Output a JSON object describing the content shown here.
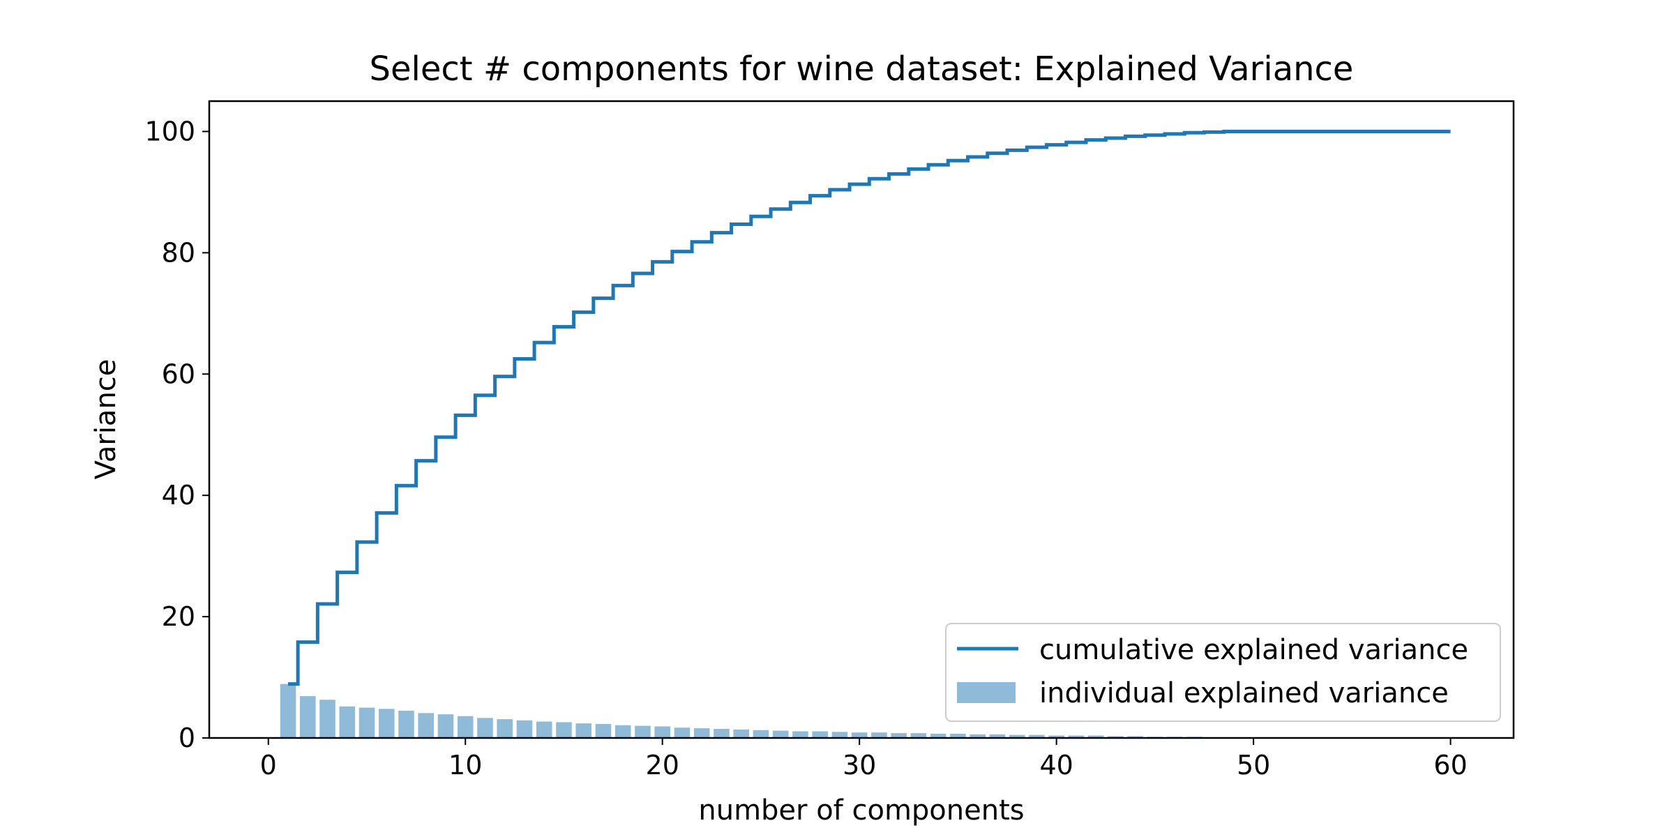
{
  "chart_data": {
    "type": "bar",
    "title": "Select # components for wine dataset: Explained Variance",
    "xlabel": "number of components",
    "ylabel": "Variance",
    "xlim": [
      -3,
      63.2
    ],
    "ylim": [
      0,
      105
    ],
    "xticks": [
      0,
      10,
      20,
      30,
      40,
      50,
      60
    ],
    "yticks": [
      0,
      20,
      40,
      60,
      80,
      100
    ],
    "grid": false,
    "legend_position": "lower right",
    "series": [
      {
        "name": "cumulative explained variance",
        "type": "step",
        "color": "#1f77b4",
        "x": [
          1,
          2,
          3,
          4,
          5,
          6,
          7,
          8,
          9,
          10,
          11,
          12,
          13,
          14,
          15,
          16,
          17,
          18,
          19,
          20,
          21,
          22,
          23,
          24,
          25,
          26,
          27,
          28,
          29,
          30,
          31,
          32,
          33,
          34,
          35,
          36,
          37,
          38,
          39,
          40,
          41,
          42,
          43,
          44,
          45,
          46,
          47,
          48,
          49,
          50,
          51,
          52,
          53,
          54,
          55,
          56,
          57,
          58,
          59,
          60
        ],
        "values": [
          8.9,
          15.8,
          22.1,
          27.3,
          32.3,
          37.1,
          41.6,
          45.7,
          49.6,
          53.2,
          56.5,
          59.6,
          62.5,
          65.2,
          67.8,
          70.2,
          72.5,
          74.6,
          76.6,
          78.5,
          80.2,
          81.8,
          83.3,
          84.7,
          86.0,
          87.2,
          88.3,
          89.4,
          90.4,
          91.3,
          92.2,
          93.0,
          93.8,
          94.5,
          95.2,
          95.8,
          96.4,
          96.9,
          97.4,
          97.8,
          98.2,
          98.6,
          98.9,
          99.2,
          99.4,
          99.6,
          99.8,
          99.9,
          100,
          100,
          100,
          100,
          100,
          100,
          100,
          100,
          100,
          100,
          100,
          100
        ]
      },
      {
        "name": "individual explained variance",
        "type": "bar",
        "color": "#1f77b4",
        "opacity": 0.5,
        "x": [
          1,
          2,
          3,
          4,
          5,
          6,
          7,
          8,
          9,
          10,
          11,
          12,
          13,
          14,
          15,
          16,
          17,
          18,
          19,
          20,
          21,
          22,
          23,
          24,
          25,
          26,
          27,
          28,
          29,
          30,
          31,
          32,
          33,
          34,
          35,
          36,
          37,
          38,
          39,
          40,
          41,
          42,
          43,
          44,
          45,
          46,
          47,
          48,
          49,
          50,
          51,
          52,
          53,
          54,
          55,
          56,
          57,
          58,
          59,
          60
        ],
        "values": [
          8.9,
          6.9,
          6.3,
          5.2,
          5.0,
          4.8,
          4.5,
          4.1,
          3.9,
          3.6,
          3.3,
          3.1,
          2.9,
          2.7,
          2.6,
          2.4,
          2.3,
          2.1,
          2.0,
          1.9,
          1.7,
          1.6,
          1.5,
          1.4,
          1.3,
          1.2,
          1.1,
          1.1,
          1.0,
          0.9,
          0.9,
          0.8,
          0.8,
          0.7,
          0.7,
          0.6,
          0.6,
          0.5,
          0.5,
          0.4,
          0.4,
          0.4,
          0.3,
          0.3,
          0.2,
          0.2,
          0.2,
          0.1,
          0.1,
          0.0,
          0.0,
          0.0,
          0.0,
          0.0,
          0.0,
          0.0,
          0.0,
          0.0,
          0.0,
          0.0
        ]
      }
    ]
  }
}
